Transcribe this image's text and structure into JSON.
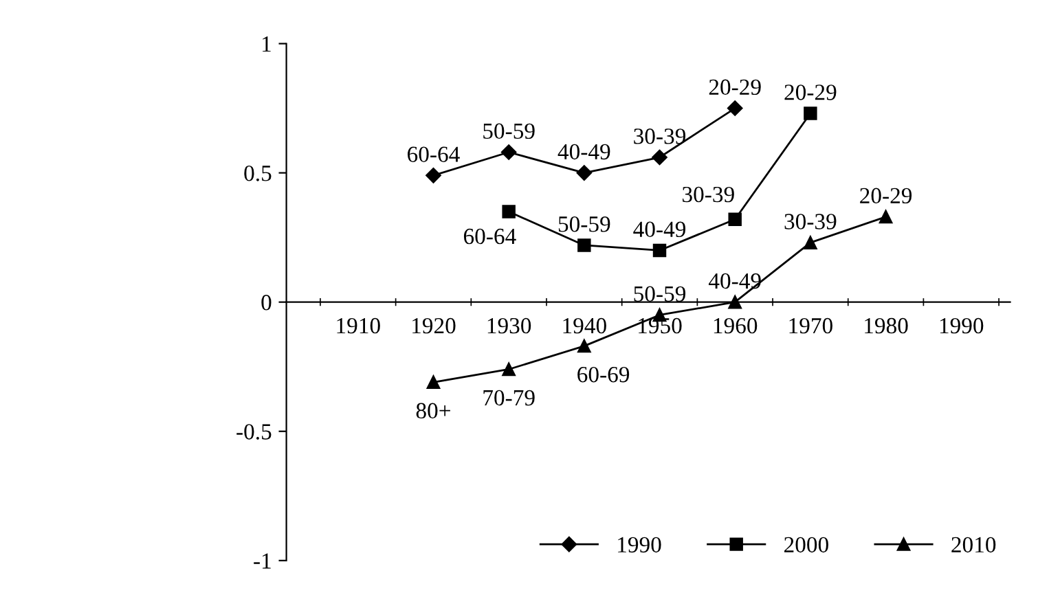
{
  "chart_data": {
    "type": "line",
    "categories": [
      "1910",
      "1920",
      "1930",
      "1940",
      "1950",
      "1960",
      "1970",
      "1980",
      "1990"
    ],
    "series": [
      {
        "name": "1990",
        "color": "#000000",
        "marker": "diamond",
        "values": [
          null,
          0.49,
          0.58,
          0.5,
          0.56,
          0.75,
          null,
          null,
          null
        ]
      },
      {
        "name": "2000",
        "color": "#000000",
        "marker": "square",
        "values": [
          null,
          null,
          0.35,
          0.22,
          0.2,
          0.32,
          0.73,
          null,
          null
        ]
      },
      {
        "name": "2010",
        "color": "#000000",
        "marker": "triangle",
        "values": [
          null,
          -0.31,
          -0.26,
          -0.17,
          -0.05,
          0.0,
          0.23,
          0.33,
          null
        ]
      }
    ],
    "ylim": [
      -1,
      1
    ],
    "yticks": [
      -1,
      -0.5,
      0,
      0.5,
      1
    ],
    "grid": false,
    "legend": "bottom right",
    "line_style": "solid",
    "annotations": [
      {
        "text": "60-64",
        "x": "1920",
        "y": 0.49
      },
      {
        "text": "50-59",
        "x": "1930",
        "y": 0.58
      },
      {
        "text": "40-49",
        "x": "1940",
        "y": 0.5
      },
      {
        "text": "30-39",
        "x": "1950",
        "y": 0.56
      },
      {
        "text": "20-29",
        "x": "1960",
        "y": 0.75
      },
      {
        "text": "60-64",
        "x": "1930",
        "y": 0.35
      },
      {
        "text": "50-59",
        "x": "1940",
        "y": 0.22
      },
      {
        "text": "40-49",
        "x": "1950",
        "y": 0.2
      },
      {
        "text": "30-39",
        "x": "1960",
        "y": 0.32
      },
      {
        "text": "20-29",
        "x": "1970",
        "y": 0.73
      },
      {
        "text": "80+",
        "x": "1920",
        "y": -0.31
      },
      {
        "text": "70-79",
        "x": "1930",
        "y": -0.26
      },
      {
        "text": "60-69",
        "x": "1940",
        "y": -0.17
      },
      {
        "text": "50-59",
        "x": "1950",
        "y": -0.05
      },
      {
        "text": "40-49",
        "x": "1960",
        "y": 0.0
      },
      {
        "text": "30-39",
        "x": "1970",
        "y": 0.23
      },
      {
        "text": "20-29",
        "x": "1980",
        "y": 0.33
      }
    ]
  }
}
